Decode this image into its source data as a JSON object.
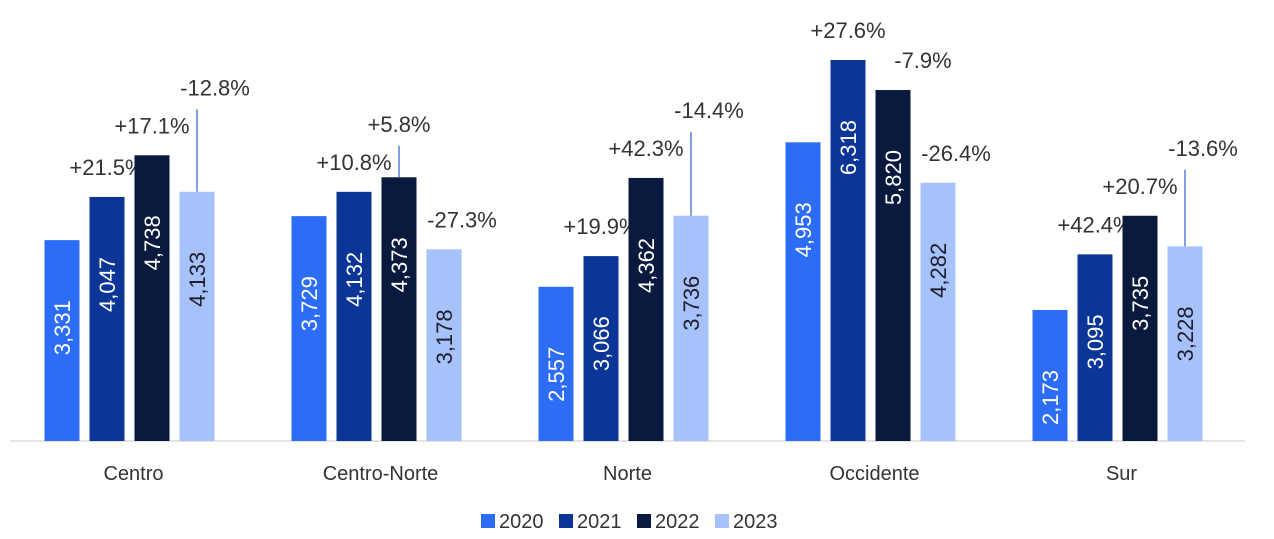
{
  "chart_data": {
    "type": "bar",
    "categories": [
      "Centro",
      "Centro-Norte",
      "Norte",
      "Occidente",
      "Sur"
    ],
    "series": [
      {
        "name": "2020",
        "color": "#2d6df6",
        "label_color": "#ffffff",
        "values": [
          3331,
          3729,
          2557,
          4953,
          2173
        ],
        "value_labels": [
          "3,331",
          "3,729",
          "2,557",
          "4,953",
          "2,173"
        ]
      },
      {
        "name": "2021",
        "color": "#0b3597",
        "label_color": "#ffffff",
        "values": [
          4047,
          4132,
          3066,
          6318,
          3095
        ],
        "value_labels": [
          "4,047",
          "4,132",
          "3,066",
          "6,318",
          "3,095"
        ],
        "change_labels": [
          "+21.5%",
          "+10.8%",
          "+19.9%",
          "+27.6%",
          "+42.4%"
        ]
      },
      {
        "name": "2022",
        "color": "#0a1a3e",
        "label_color": "#ffffff",
        "values": [
          4738,
          4373,
          4362,
          5820,
          3735
        ],
        "value_labels": [
          "4,738",
          "4,373",
          "4,362",
          "5,820",
          "3,735"
        ],
        "change_labels": [
          "+17.1%",
          "+5.8%",
          "+42.3%",
          "-7.9%",
          "+20.7%"
        ]
      },
      {
        "name": "2023",
        "color": "#a7c1fb",
        "label_color": "#1d1d2b",
        "values": [
          4133,
          3178,
          3736,
          4282,
          3228
        ],
        "value_labels": [
          "4,133",
          "3,178",
          "3,736",
          "4,282",
          "3,228"
        ],
        "change_labels": [
          "-12.8%",
          "-27.3%",
          "-14.4%",
          "-26.4%",
          "-13.6%"
        ]
      }
    ],
    "legend": "bottom"
  }
}
